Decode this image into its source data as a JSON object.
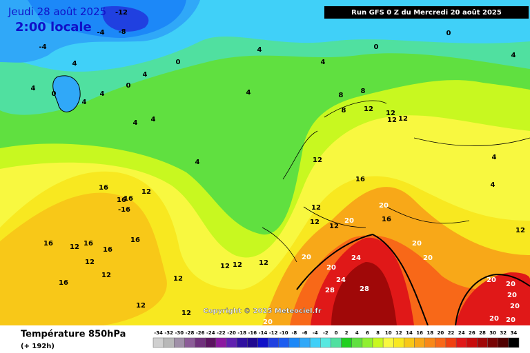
{
  "header": {
    "date": "Jeudi 28 août 2025",
    "time": "2:00 locale",
    "run": "Run GFS 0 Z du Mercredi 20 août 2025"
  },
  "copyright": "Copyright © 2025 Meteociel.fr",
  "footer": {
    "title": "Température 850hPa",
    "lead": "(+ 192h)"
  },
  "colorbar": {
    "ticks": [
      -34,
      -32,
      -30,
      -28,
      -26,
      -24,
      -22,
      -20,
      -18,
      -16,
      -14,
      -12,
      -10,
      -8,
      -6,
      -4,
      -2,
      0,
      2,
      4,
      6,
      8,
      10,
      12,
      14,
      16,
      18,
      20,
      22,
      24,
      26,
      28,
      30,
      32,
      34
    ],
    "colors": [
      "#d0d0d0",
      "#b8b8b8",
      "#a090a8",
      "#8c5c98",
      "#70307c",
      "#5c1460",
      "#8c18a0",
      "#6020b0",
      "#3010a0",
      "#200890",
      "#1010c8",
      "#2040e0",
      "#1c5cf0",
      "#1c88f8",
      "#30a8f8",
      "#40d0f8",
      "#58e8e0",
      "#50e0a0",
      "#20d020",
      "#60e040",
      "#90f030",
      "#c8f820",
      "#f8f840",
      "#f8e820",
      "#f8c818",
      "#f8a818",
      "#f88818",
      "#f86818",
      "#f04010",
      "#e01818",
      "#c80c0c",
      "#a00808",
      "#780404",
      "#500000",
      "#000000"
    ]
  },
  "map_labels": [
    -12,
    -8,
    -4,
    -4,
    4,
    4,
    0,
    4,
    4,
    0,
    4,
    0,
    4,
    4,
    0,
    0,
    4,
    4,
    4,
    4,
    4,
    8,
    8,
    8,
    12,
    12,
    12,
    12,
    12,
    16,
    16,
    12,
    16,
    16,
    -16,
    16,
    16,
    12,
    16,
    16,
    12,
    16,
    12,
    12,
    12,
    12,
    12,
    12,
    12,
    12,
    12,
    12,
    20,
    16,
    20,
    20,
    20,
    20,
    20,
    24,
    24,
    28,
    28,
    20,
    4,
    4,
    12,
    20,
    20,
    20,
    20,
    20,
    20
  ]
}
